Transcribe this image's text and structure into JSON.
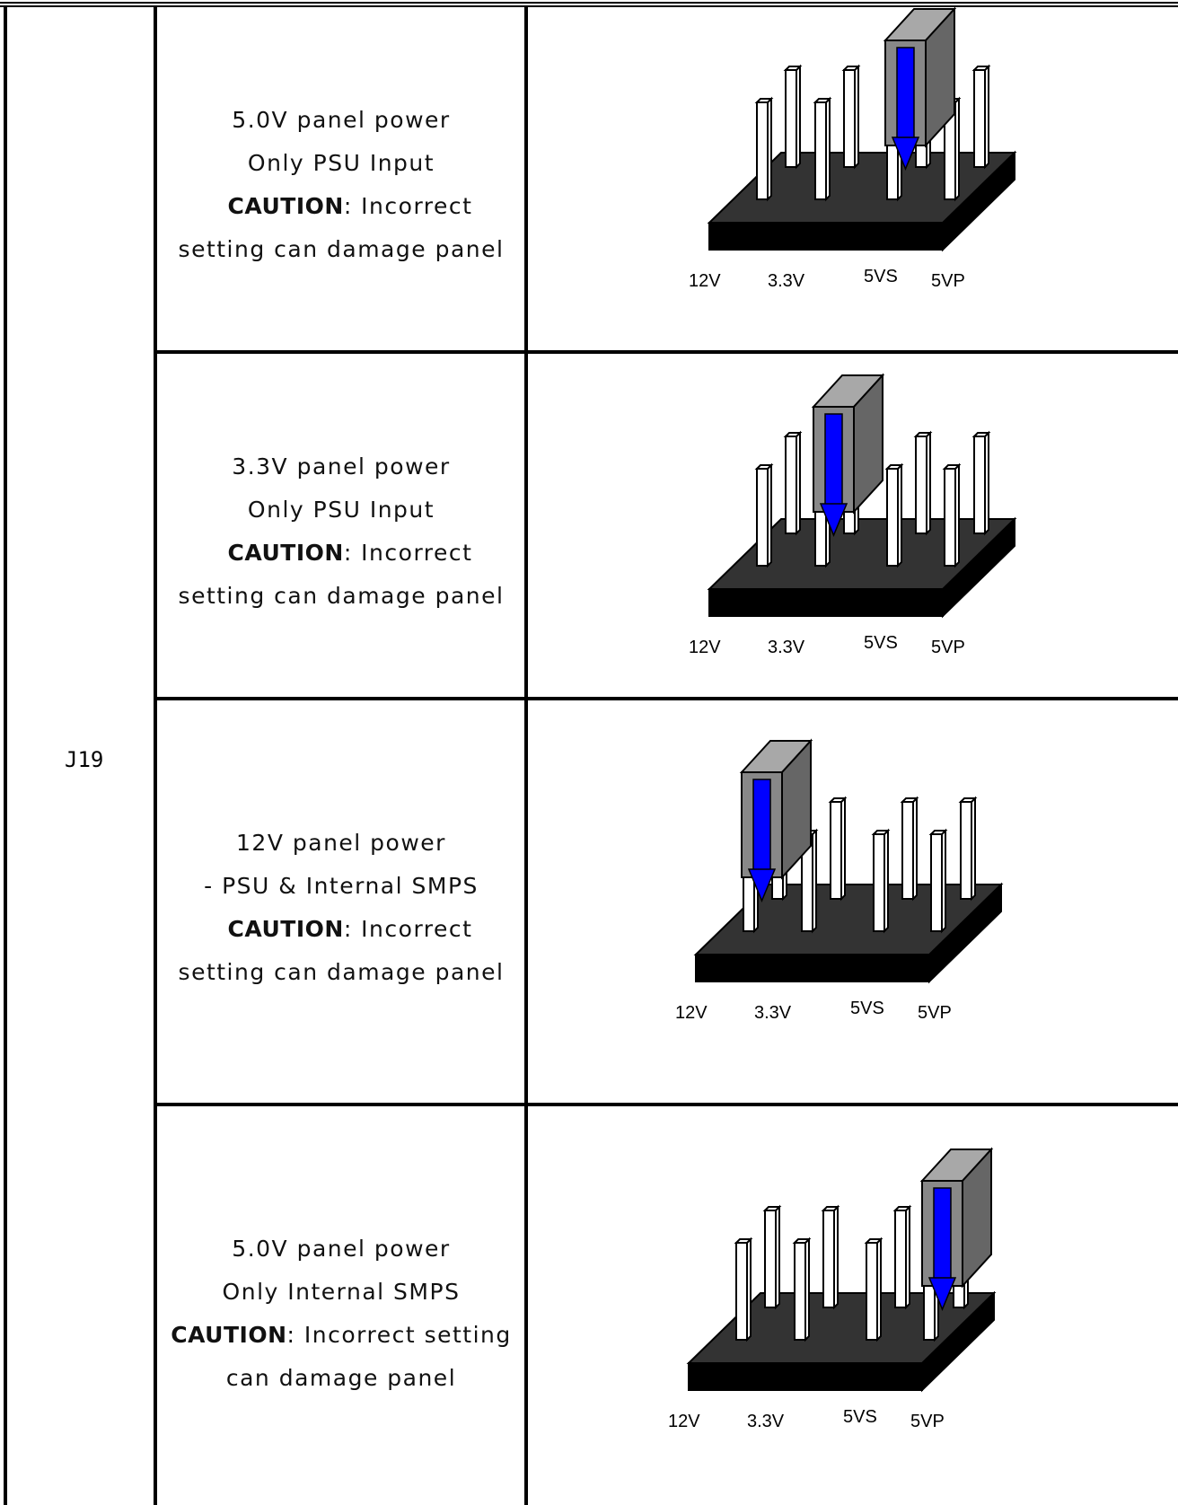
{
  "connector_label": "J19",
  "rows": [
    {
      "lines": [
        "5.0V panel power",
        "Only PSU Input"
      ],
      "caution_label": "CAUTION",
      "caution_text": ": Incorrect",
      "caution_break": false,
      "caution_cont": "setting can damage panel",
      "jumper_position": "5VS",
      "pin_labels": [
        "12V",
        "3.3V",
        "5VS",
        "5VP"
      ]
    },
    {
      "lines": [
        "3.3V panel power",
        "Only PSU Input"
      ],
      "caution_label": "CAUTION",
      "caution_text": ": Incorrect",
      "caution_break": false,
      "caution_cont": "setting can damage panel",
      "jumper_position": "3.3V",
      "pin_labels": [
        "12V",
        "3.3V",
        "5VS",
        "5VP"
      ]
    },
    {
      "lines": [
        "12V panel power",
        "- PSU & Internal SMPS"
      ],
      "caution_label": "CAUTION",
      "caution_text": ": Incorrect",
      "caution_break": false,
      "caution_cont": "setting can damage panel",
      "jumper_position": "12V",
      "pin_labels": [
        "12V",
        "3.3V",
        "5VS",
        "5VP"
      ]
    },
    {
      "lines": [
        "5.0V panel power",
        "Only Internal SMPS"
      ],
      "caution_label": "CAUTION",
      "caution_text": ": Incorrect setting",
      "caution_break": true,
      "caution_cont": "can damage panel",
      "jumper_position": "5VP",
      "pin_labels": [
        "12V",
        "3.3V",
        "5VS",
        "5VP"
      ]
    }
  ],
  "colors": {
    "border": "#000000",
    "base_top": "#333333",
    "base_front": "#000000",
    "pin": "#ffffff",
    "jumper_front": "#888888",
    "jumper_side": "#666666",
    "jumper_top": "#a8a8a8",
    "arrow": "#0000ff"
  }
}
